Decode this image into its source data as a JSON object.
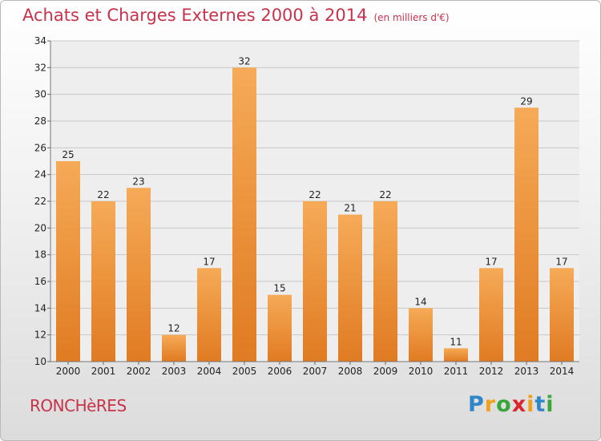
{
  "header": {
    "title": "Achats et Charges Externes 2000 à 2014",
    "subtitle": "(en milliers d'€)"
  },
  "footer": {
    "place": "RONCHèRES",
    "logo_letters": [
      {
        "ch": "P",
        "color": "#2f86c8"
      },
      {
        "ch": "r",
        "color": "#f0a01c"
      },
      {
        "ch": "o",
        "color": "#3aa63a"
      },
      {
        "ch": "x",
        "color": "#d6262e"
      },
      {
        "ch": "i",
        "color": "#f0a01c"
      },
      {
        "ch": "t",
        "color": "#2f86c8"
      },
      {
        "ch": "i",
        "color": "#3aa63a"
      }
    ]
  },
  "colors": {
    "title": "#c8324b",
    "bar_light": "#f6aa57",
    "bar_dark": "#e07b22",
    "grid": "#c8c8c8",
    "axis_text": "#222222"
  },
  "chart_data": {
    "type": "bar",
    "categories": [
      "2000",
      "2001",
      "2002",
      "2003",
      "2004",
      "2005",
      "2006",
      "2007",
      "2008",
      "2009",
      "2010",
      "2011",
      "2012",
      "2013",
      "2014"
    ],
    "values": [
      25,
      22,
      23,
      12,
      17,
      32,
      15,
      22,
      21,
      22,
      14,
      11,
      17,
      29,
      17
    ],
    "ylim": [
      10,
      34
    ],
    "yticks": [
      10,
      12,
      14,
      16,
      18,
      20,
      22,
      24,
      26,
      28,
      30,
      32,
      34
    ],
    "grid": true,
    "data_labels": true
  }
}
